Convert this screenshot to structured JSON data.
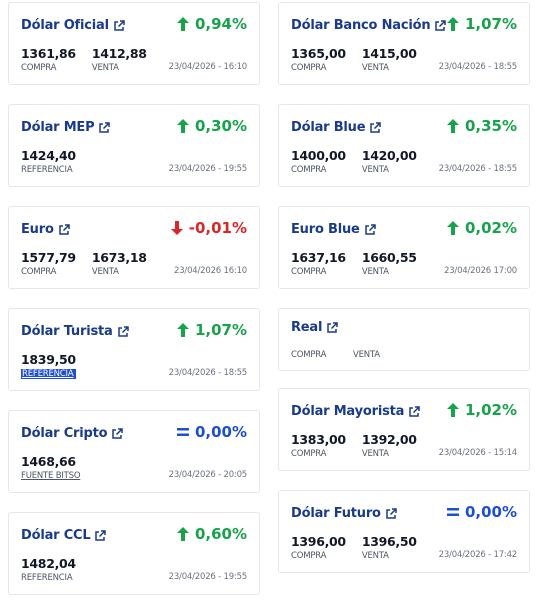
{
  "colors": {
    "brand_blue": "#1a3a8a",
    "up_green": "#16a34a",
    "down_red": "#dc2626",
    "equal_blue": "#1d4ed8"
  },
  "cards": [
    {
      "name": "Dólar Oficial",
      "change": "0,94%",
      "trend": "up",
      "values": [
        {
          "value": "1361,86",
          "label": "COMPRA"
        },
        {
          "value": "1412,88",
          "label": "VENTA"
        }
      ],
      "timestamp": "23/04/2026 - 16:10"
    },
    {
      "name": "Dólar MEP",
      "change": "0,30%",
      "trend": "up",
      "values": [
        {
          "value": "1424,40",
          "label": "REFERENCIA"
        }
      ],
      "timestamp": "23/04/2026 - 19:55"
    },
    {
      "name": "Euro",
      "change": "-0,01%",
      "trend": "down",
      "values": [
        {
          "value": "1577,79",
          "label": "COMPRA"
        },
        {
          "value": "1673,18",
          "label": "VENTA"
        }
      ],
      "timestamp": "23/04/2026 16:10"
    },
    {
      "name": "Dólar Turista",
      "change": "1,07%",
      "trend": "up",
      "values": [
        {
          "value": "1839,50",
          "label": "REFERENCIA"
        }
      ],
      "timestamp": "23/04/2026 - 18:55"
    },
    {
      "name": "Dólar Cripto",
      "change": "0,00%",
      "trend": "equal",
      "values": [
        {
          "value": "1468,66",
          "label": "FUENTE BITSO"
        }
      ],
      "timestamp": "23/04/2026 - 20:05"
    },
    {
      "name": "Dólar CCL",
      "change": "0,60%",
      "trend": "up",
      "values": [
        {
          "value": "1482,04",
          "label": "REFERENCIA"
        }
      ],
      "timestamp": "23/04/2026 - 19:55"
    },
    {
      "name": "Dólar Banco Nación",
      "change": "1,07%",
      "trend": "up",
      "values": [
        {
          "value": "1365,00",
          "label": "COMPRA"
        },
        {
          "value": "1415,00",
          "label": "VENTA"
        }
      ],
      "timestamp": "23/04/2026 - 18:55"
    },
    {
      "name": "Dólar Blue",
      "change": "0,35%",
      "trend": "up",
      "values": [
        {
          "value": "1400,00",
          "label": "COMPRA"
        },
        {
          "value": "1420,00",
          "label": "VENTA"
        }
      ],
      "timestamp": "23/04/2026 - 18:55"
    },
    {
      "name": "Euro Blue",
      "change": "0,02%",
      "trend": "up",
      "values": [
        {
          "value": "1637,16",
          "label": "COMPRA"
        },
        {
          "value": "1660,55",
          "label": "VENTA"
        }
      ],
      "timestamp": "23/04/2026 17:00"
    },
    {
      "name": "Real",
      "change": "",
      "trend": "none",
      "values": [
        {
          "value": "",
          "label": "COMPRA"
        },
        {
          "value": "",
          "label": "VENTA"
        }
      ],
      "timestamp": ""
    },
    {
      "name": "Dólar Mayorista",
      "change": "1,02%",
      "trend": "up",
      "values": [
        {
          "value": "1383,00",
          "label": "COMPRA"
        },
        {
          "value": "1392,00",
          "label": "VENTA"
        }
      ],
      "timestamp": "23/04/2026 - 15:14"
    },
    {
      "name": "Dólar Futuro",
      "change": "0,00%",
      "trend": "equal",
      "values": [
        {
          "value": "1396,00",
          "label": "COMPRA"
        },
        {
          "value": "1396,50",
          "label": "VENTA"
        }
      ],
      "timestamp": "23/04/2026 - 17:42"
    }
  ]
}
